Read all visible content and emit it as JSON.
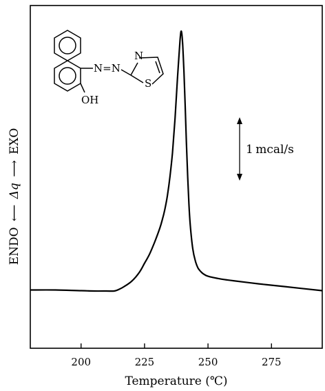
{
  "chart_data": {
    "type": "line",
    "title": "",
    "xlabel": "Temperature (℃)",
    "ylabel": {
      "left": "ENDO",
      "arrow": "⟵",
      "middle": "Δq",
      "arrow2": "⟶",
      "right": "EXO"
    },
    "xlim": [
      180,
      295
    ],
    "x_ticks": [
      200,
      225,
      250,
      275
    ],
    "x_tick_labels": [
      "200",
      "225",
      "250",
      "275"
    ],
    "ylim": [
      0,
      10
    ],
    "y_ticks_shown": false,
    "grid": false,
    "scale_bar": {
      "label": "1 mcal/s",
      "value_mcal_per_s": 1
    },
    "series": [
      {
        "x": [
          180,
          190,
          200,
          205,
          210,
          213,
          215,
          217,
          220,
          223,
          225,
          227,
          229,
          231,
          232,
          233,
          234,
          235,
          236,
          237,
          238,
          239,
          239.5,
          240,
          240.5,
          241,
          241.5,
          242,
          242.5,
          243,
          244,
          245,
          246,
          247,
          248,
          250,
          255,
          260,
          270,
          280,
          295
        ],
        "y": [
          1.7,
          1.7,
          1.68,
          1.67,
          1.67,
          1.67,
          1.72,
          1.8,
          1.96,
          2.22,
          2.48,
          2.75,
          3.1,
          3.5,
          3.75,
          4.05,
          4.45,
          5.0,
          5.7,
          6.7,
          7.9,
          9.0,
          9.25,
          8.9,
          8.1,
          7.1,
          6.0,
          5.0,
          4.2,
          3.6,
          2.9,
          2.55,
          2.35,
          2.25,
          2.18,
          2.1,
          2.02,
          1.97,
          1.88,
          1.8,
          1.68
        ]
      }
    ],
    "structure_labels": {
      "azo": "N=N",
      "hydroxyl": "OH",
      "ring_n": "N",
      "ring_s": "S"
    }
  }
}
